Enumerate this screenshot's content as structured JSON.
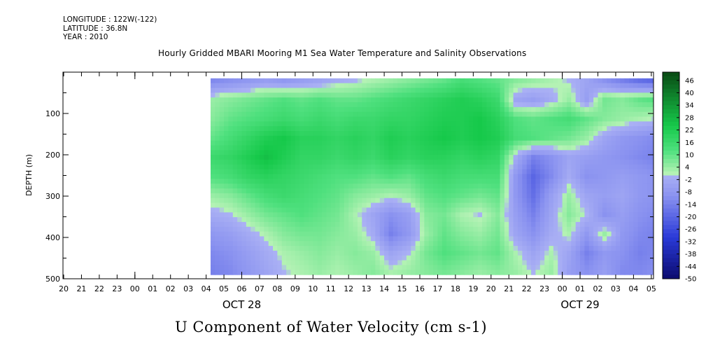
{
  "header": {
    "longitude": "LONGITUDE : 122W(-122)",
    "latitude": "LATITUDE : 36.8N",
    "year": "YEAR : 2010",
    "title": "Hourly Gridded MBARI Mooring M1 Sea Water Temperature and Salinity Observations"
  },
  "caption": "U Component of Water Velocity (cm s-1)",
  "colors": {
    "negative_strong": "#0b0b6e",
    "negative_light": "#aab0f4",
    "positive_light": "#b4f2b4",
    "positive_strong": "#0a4a14",
    "data_panel_bg": "#7ff49a"
  },
  "chart_data": {
    "type": "heatmap",
    "title": "Hourly Gridded MBARI Mooring M1 Sea Water Temperature and Salinity Observations",
    "xlabel": "",
    "ylabel": "DEPTH (m)",
    "x_tick_labels": [
      "20",
      "21",
      "22",
      "23",
      "00",
      "01",
      "02",
      "03",
      "04",
      "05",
      "06",
      "07",
      "08",
      "09",
      "10",
      "11",
      "12",
      "13",
      "14",
      "15",
      "16",
      "17",
      "18",
      "19",
      "20",
      "21",
      "22",
      "23",
      "00",
      "01",
      "02",
      "03",
      "04",
      "05"
    ],
    "date_labels": [
      {
        "label": "OCT 28",
        "at_tick": 10
      },
      {
        "label": "OCT 29",
        "at_tick": 29
      }
    ],
    "ylim": [
      500,
      0
    ],
    "y_ticks": [
      100,
      200,
      300,
      400,
      500
    ],
    "y_tick_labels": [
      "100",
      "200",
      "300",
      "400",
      "500"
    ],
    "data_start_tick": 8.25,
    "data_end_tick": 33.5,
    "depth_range": [
      15,
      490
    ],
    "colorbar": {
      "min": -50,
      "max": 50,
      "labels": [
        "46",
        "40",
        "34",
        "28",
        "22",
        "16",
        "10",
        "4",
        "-2",
        "-8",
        "-14",
        "-20",
        "-26",
        "-32",
        "-38",
        "-44",
        "-50"
      ]
    },
    "grid_columns": [
      {
        "hour": "04",
        "profile": [
          -12,
          4,
          6,
          10,
          16,
          12,
          4,
          -2,
          -8,
          -12,
          -14
        ]
      },
      {
        "hour": "05",
        "profile": [
          -10,
          6,
          10,
          14,
          18,
          14,
          6,
          0,
          -6,
          -10,
          -12
        ]
      },
      {
        "hour": "06",
        "profile": [
          -8,
          8,
          12,
          18,
          22,
          18,
          10,
          4,
          -2,
          -6,
          -8
        ]
      },
      {
        "hour": "07",
        "profile": [
          -6,
          10,
          14,
          22,
          26,
          20,
          14,
          8,
          2,
          -2,
          -4
        ]
      },
      {
        "hour": "08",
        "profile": [
          -8,
          12,
          16,
          24,
          22,
          18,
          16,
          10,
          6,
          2,
          0
        ]
      },
      {
        "hour": "09",
        "profile": [
          -6,
          10,
          14,
          20,
          18,
          16,
          14,
          12,
          8,
          4,
          2
        ]
      },
      {
        "hour": "10",
        "profile": [
          -4,
          12,
          16,
          20,
          18,
          14,
          12,
          10,
          8,
          6,
          4
        ]
      },
      {
        "hour": "11",
        "profile": [
          -2,
          10,
          14,
          18,
          16,
          12,
          10,
          8,
          6,
          4,
          2
        ]
      },
      {
        "hour": "12",
        "profile": [
          0,
          10,
          16,
          20,
          18,
          12,
          6,
          2,
          4,
          6,
          4
        ]
      },
      {
        "hour": "13",
        "profile": [
          2,
          12,
          16,
          18,
          16,
          10,
          4,
          -4,
          -2,
          4,
          6
        ]
      },
      {
        "hour": "14",
        "profile": [
          4,
          14,
          18,
          22,
          20,
          12,
          2,
          -10,
          -14,
          -4,
          2
        ]
      },
      {
        "hour": "15",
        "profile": [
          6,
          16,
          18,
          20,
          18,
          10,
          4,
          -6,
          -8,
          0,
          4
        ]
      },
      {
        "hour": "16",
        "profile": [
          8,
          18,
          20,
          22,
          20,
          14,
          10,
          6,
          4,
          8,
          6
        ]
      },
      {
        "hour": "17",
        "profile": [
          10,
          20,
          22,
          24,
          20,
          16,
          12,
          8,
          10,
          12,
          8
        ]
      },
      {
        "hour": "18",
        "profile": [
          14,
          22,
          22,
          22,
          18,
          14,
          10,
          2,
          6,
          10,
          6
        ]
      },
      {
        "hour": "19",
        "profile": [
          12,
          20,
          24,
          24,
          20,
          14,
          8,
          0,
          4,
          8,
          4
        ]
      },
      {
        "hour": "20",
        "profile": [
          10,
          16,
          20,
          22,
          18,
          14,
          10,
          6,
          8,
          10,
          6
        ]
      },
      {
        "hour": "21",
        "profile": [
          6,
          -4,
          12,
          14,
          -2,
          -8,
          -8,
          -6,
          -4,
          2,
          4
        ]
      },
      {
        "hour": "22",
        "profile": [
          4,
          -6,
          10,
          12,
          -14,
          -20,
          -18,
          -14,
          -10,
          -4,
          0
        ]
      },
      {
        "hour": "23",
        "profile": [
          2,
          -2,
          12,
          10,
          -10,
          -12,
          -6,
          -4,
          -2,
          2,
          4
        ]
      },
      {
        "hour": "00",
        "profile": [
          0,
          4,
          14,
          8,
          -4,
          -2,
          4,
          6,
          2,
          -4,
          -6
        ]
      },
      {
        "hour": "01",
        "profile": [
          -4,
          -6,
          10,
          4,
          -6,
          -10,
          -4,
          0,
          -8,
          -14,
          -10
        ]
      },
      {
        "hour": "02",
        "profile": [
          -10,
          8,
          6,
          -4,
          -8,
          -8,
          -6,
          -10,
          4,
          -8,
          -6
        ]
      },
      {
        "hour": "03",
        "profile": [
          -14,
          6,
          4,
          -8,
          -10,
          -6,
          -4,
          -6,
          -8,
          -10,
          -12
        ]
      },
      {
        "hour": "04",
        "profile": [
          -18,
          10,
          2,
          -10,
          -12,
          -8,
          -8,
          -10,
          -12,
          -14,
          -12
        ]
      },
      {
        "hour": "05",
        "profile": [
          -20,
          12,
          0,
          -12,
          -14,
          -10,
          -10,
          -12,
          -14,
          -12,
          -10
        ]
      }
    ]
  }
}
